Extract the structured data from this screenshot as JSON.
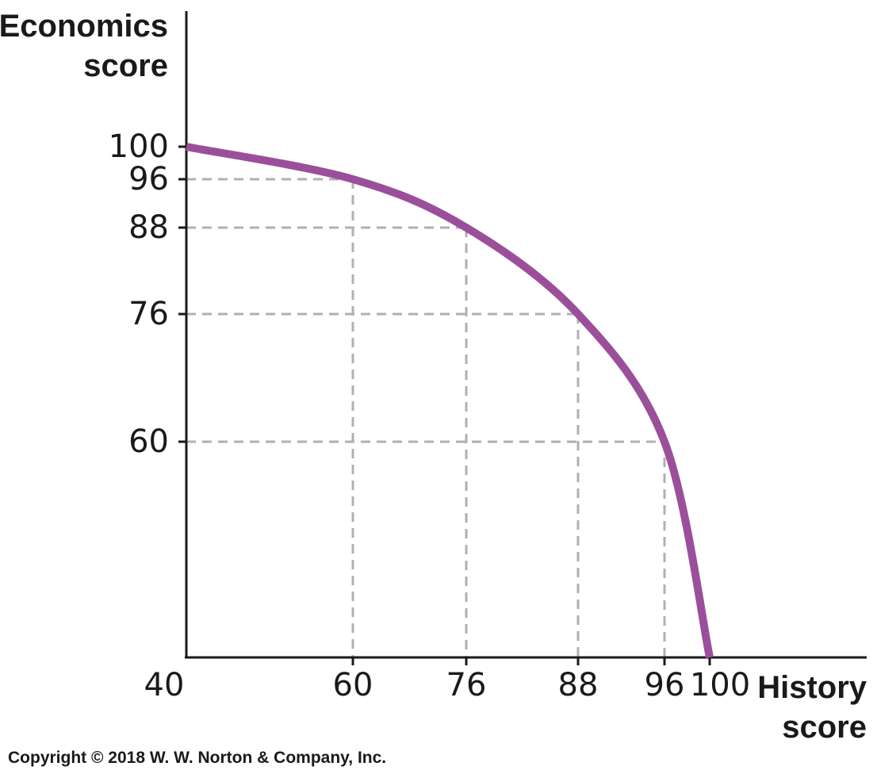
{
  "chart_data": {
    "type": "line",
    "xlabel": [
      "History",
      "score"
    ],
    "ylabel": [
      "Economics",
      "score"
    ],
    "x_ticks": [
      40,
      60,
      76,
      88,
      96,
      100
    ],
    "y_ticks": [
      100,
      96,
      88,
      76,
      60
    ],
    "xlim": [
      40,
      100
    ],
    "ylim": [
      40,
      100
    ],
    "series": [
      {
        "color": "#9b4f9b",
        "points": [
          [
            40,
            100
          ],
          [
            60,
            96
          ],
          [
            76,
            88
          ],
          [
            88,
            76
          ],
          [
            96,
            60
          ],
          [
            100,
            40
          ]
        ]
      }
    ],
    "guide_points": [
      [
        60,
        96
      ],
      [
        76,
        88
      ],
      [
        88,
        76
      ],
      [
        96,
        60
      ]
    ],
    "guide_color": "#b0b0b0"
  },
  "copyright": "Copyright © 2018 W. W. Norton & Company, Inc."
}
